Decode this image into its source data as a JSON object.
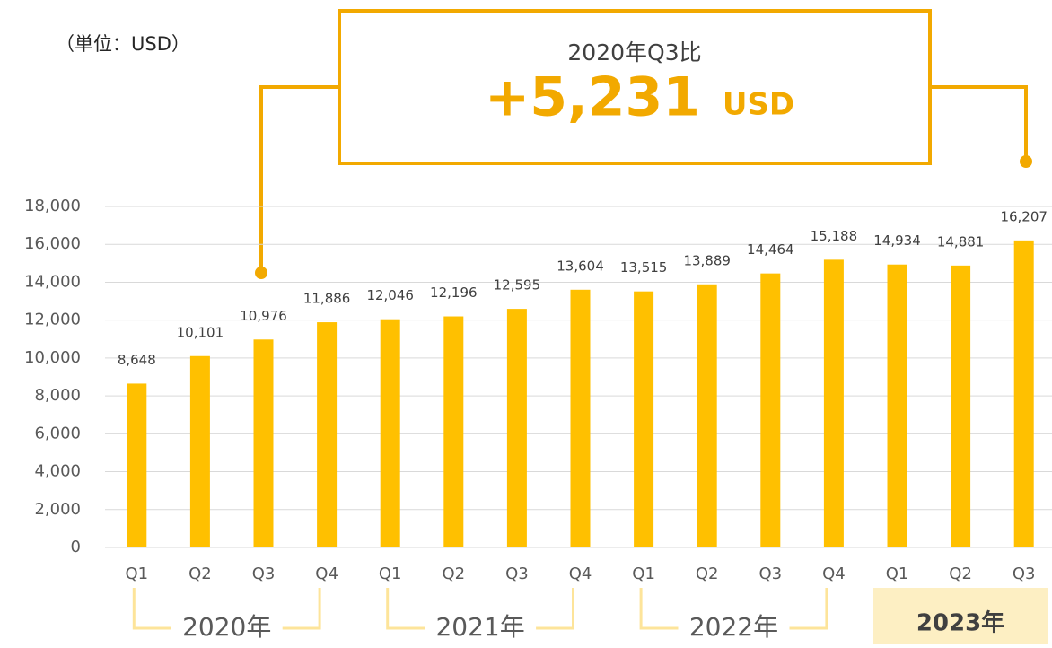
{
  "chart_data": {
    "type": "bar",
    "unit_label": "（単位：USD）",
    "categories": [
      "Q1",
      "Q2",
      "Q3",
      "Q4",
      "Q1",
      "Q2",
      "Q3",
      "Q4",
      "Q1",
      "Q2",
      "Q3",
      "Q4",
      "Q1",
      "Q2",
      "Q3"
    ],
    "values": [
      8648,
      10101,
      10976,
      11886,
      12046,
      12196,
      12595,
      13604,
      13515,
      13889,
      14464,
      15188,
      14934,
      14881,
      16207
    ],
    "value_labels": [
      "8,648",
      "10,101",
      "10,976",
      "11,886",
      "12,046",
      "12,196",
      "12,595",
      "13,604",
      "13,515",
      "13,889",
      "14,464",
      "15,188",
      "14,934",
      "14,881",
      "16,207"
    ],
    "color": "#ffc000",
    "ylim": [
      0,
      18000
    ],
    "yticks": [
      0,
      {
        "value": 2000,
        "label": "2,000"
      },
      {
        "value": 4000,
        "label": "4,000"
      },
      {
        "value": 6000,
        "label": "6,000"
      },
      {
        "value": 8000,
        "label": "8,000"
      },
      {
        "value": 10000,
        "label": "10,000"
      },
      {
        "value": 12000,
        "label": "12,000"
      },
      {
        "value": 14000,
        "label": "14,000"
      },
      {
        "value": 16000,
        "label": "16,000"
      },
      {
        "value": 18000,
        "label": "18,000"
      }
    ],
    "grid": true,
    "groups": [
      "2020年",
      "2021年",
      "2022年",
      "2023年"
    ],
    "annotation": {
      "title": "2020年Q3比",
      "value": "+5,231",
      "unit": "USD"
    }
  }
}
